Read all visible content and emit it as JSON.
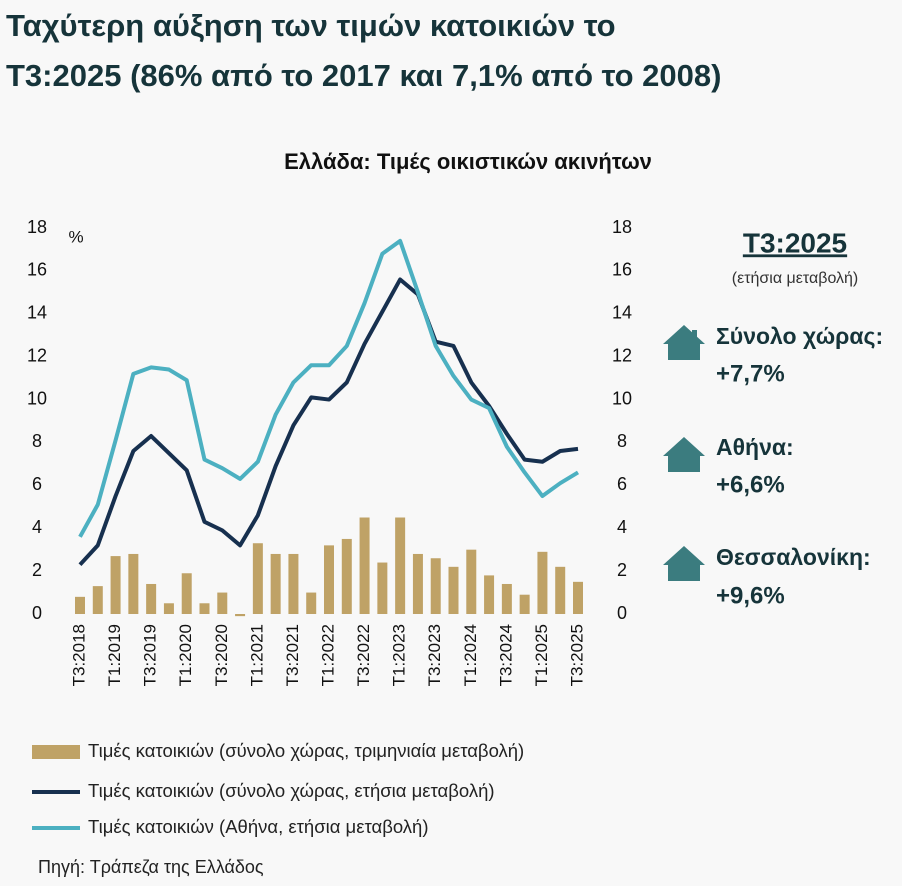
{
  "title_lines": [
    "Ταχύτερη αύξηση των τιμών κατοικιών το",
    "Τ3:2025 (86% από το 2017 και 7,1% από το 2008)"
  ],
  "chart_data": {
    "type": "combo",
    "title": "Ελλάδα: Τιμές οικιστικών ακινήτων",
    "y_unit": "%",
    "categories": [
      "Τ3:2018",
      null,
      "Τ1:2019",
      null,
      "Τ3:2019",
      null,
      "Τ1:2020",
      null,
      "Τ3:2020",
      null,
      "Τ1:2021",
      null,
      "Τ3:2021",
      null,
      "Τ1:2022",
      null,
      "Τ3:2022",
      null,
      "Τ1:2023",
      null,
      "Τ3:2023",
      null,
      "Τ1:2024",
      null,
      "Τ3:2024",
      null,
      "Τ1:2025",
      null,
      "Τ3:2025"
    ],
    "series": [
      {
        "name": "Τιμές κατοικιών (σύνολο χώρας, τριμηνιαία μεταβολή)",
        "type": "bar",
        "color": "#bfa266",
        "values": [
          0.8,
          1.3,
          2.7,
          2.8,
          1.4,
          0.5,
          1.9,
          0.5,
          1.0,
          -0.1,
          3.3,
          2.8,
          2.8,
          1.0,
          3.2,
          3.5,
          4.5,
          2.4,
          4.5,
          2.8,
          2.6,
          2.2,
          3.0,
          1.8,
          1.4,
          0.9,
          2.9,
          2.2,
          1.5
        ]
      },
      {
        "name": "Τιμές κατοικιών (σύνολο χώρας, ετήσια μεταβολή)",
        "type": "line",
        "color": "#17304f",
        "values": [
          2.3,
          3.2,
          5.5,
          7.6,
          8.3,
          7.5,
          6.7,
          4.3,
          3.9,
          3.2,
          4.6,
          6.9,
          8.8,
          10.1,
          10.0,
          10.8,
          12.6,
          14.1,
          15.6,
          14.9,
          12.7,
          12.5,
          10.8,
          9.7,
          8.4,
          7.2,
          7.1,
          7.6,
          7.7
        ]
      },
      {
        "name": "Τιμές κατοικιών (Αθήνα, ετήσια μεταβολή)",
        "type": "line",
        "color": "#4cb0c1",
        "values": [
          3.6,
          5.1,
          8.1,
          11.2,
          11.5,
          11.4,
          10.9,
          7.2,
          6.8,
          6.3,
          7.1,
          9.3,
          10.8,
          11.6,
          11.6,
          12.5,
          14.5,
          16.8,
          17.4,
          15.0,
          12.5,
          11.1,
          10.0,
          9.6,
          7.8,
          6.6,
          5.5,
          6.1,
          6.6
        ]
      }
    ],
    "ylim": [
      0,
      18
    ],
    "yticks": [
      0,
      2,
      4,
      6,
      8,
      10,
      12,
      14,
      16,
      18
    ],
    "y2lim": [
      0,
      18
    ],
    "y2ticks": [
      0,
      2,
      4,
      6,
      8,
      10,
      12,
      14,
      16,
      18
    ]
  },
  "panel": {
    "title": "Τ3:2025",
    "subtitle": "(ετήσια μεταβολή)",
    "items": [
      {
        "label": "Σύνολο χώρας:",
        "value": "+7,7%"
      },
      {
        "label": "Αθήνα:",
        "value": "+6,6%"
      },
      {
        "label": "Θεσσαλονίκη:",
        "value": "+9,6%"
      }
    ]
  },
  "source": "Πηγή: Τράπεζα της Ελλάδος"
}
